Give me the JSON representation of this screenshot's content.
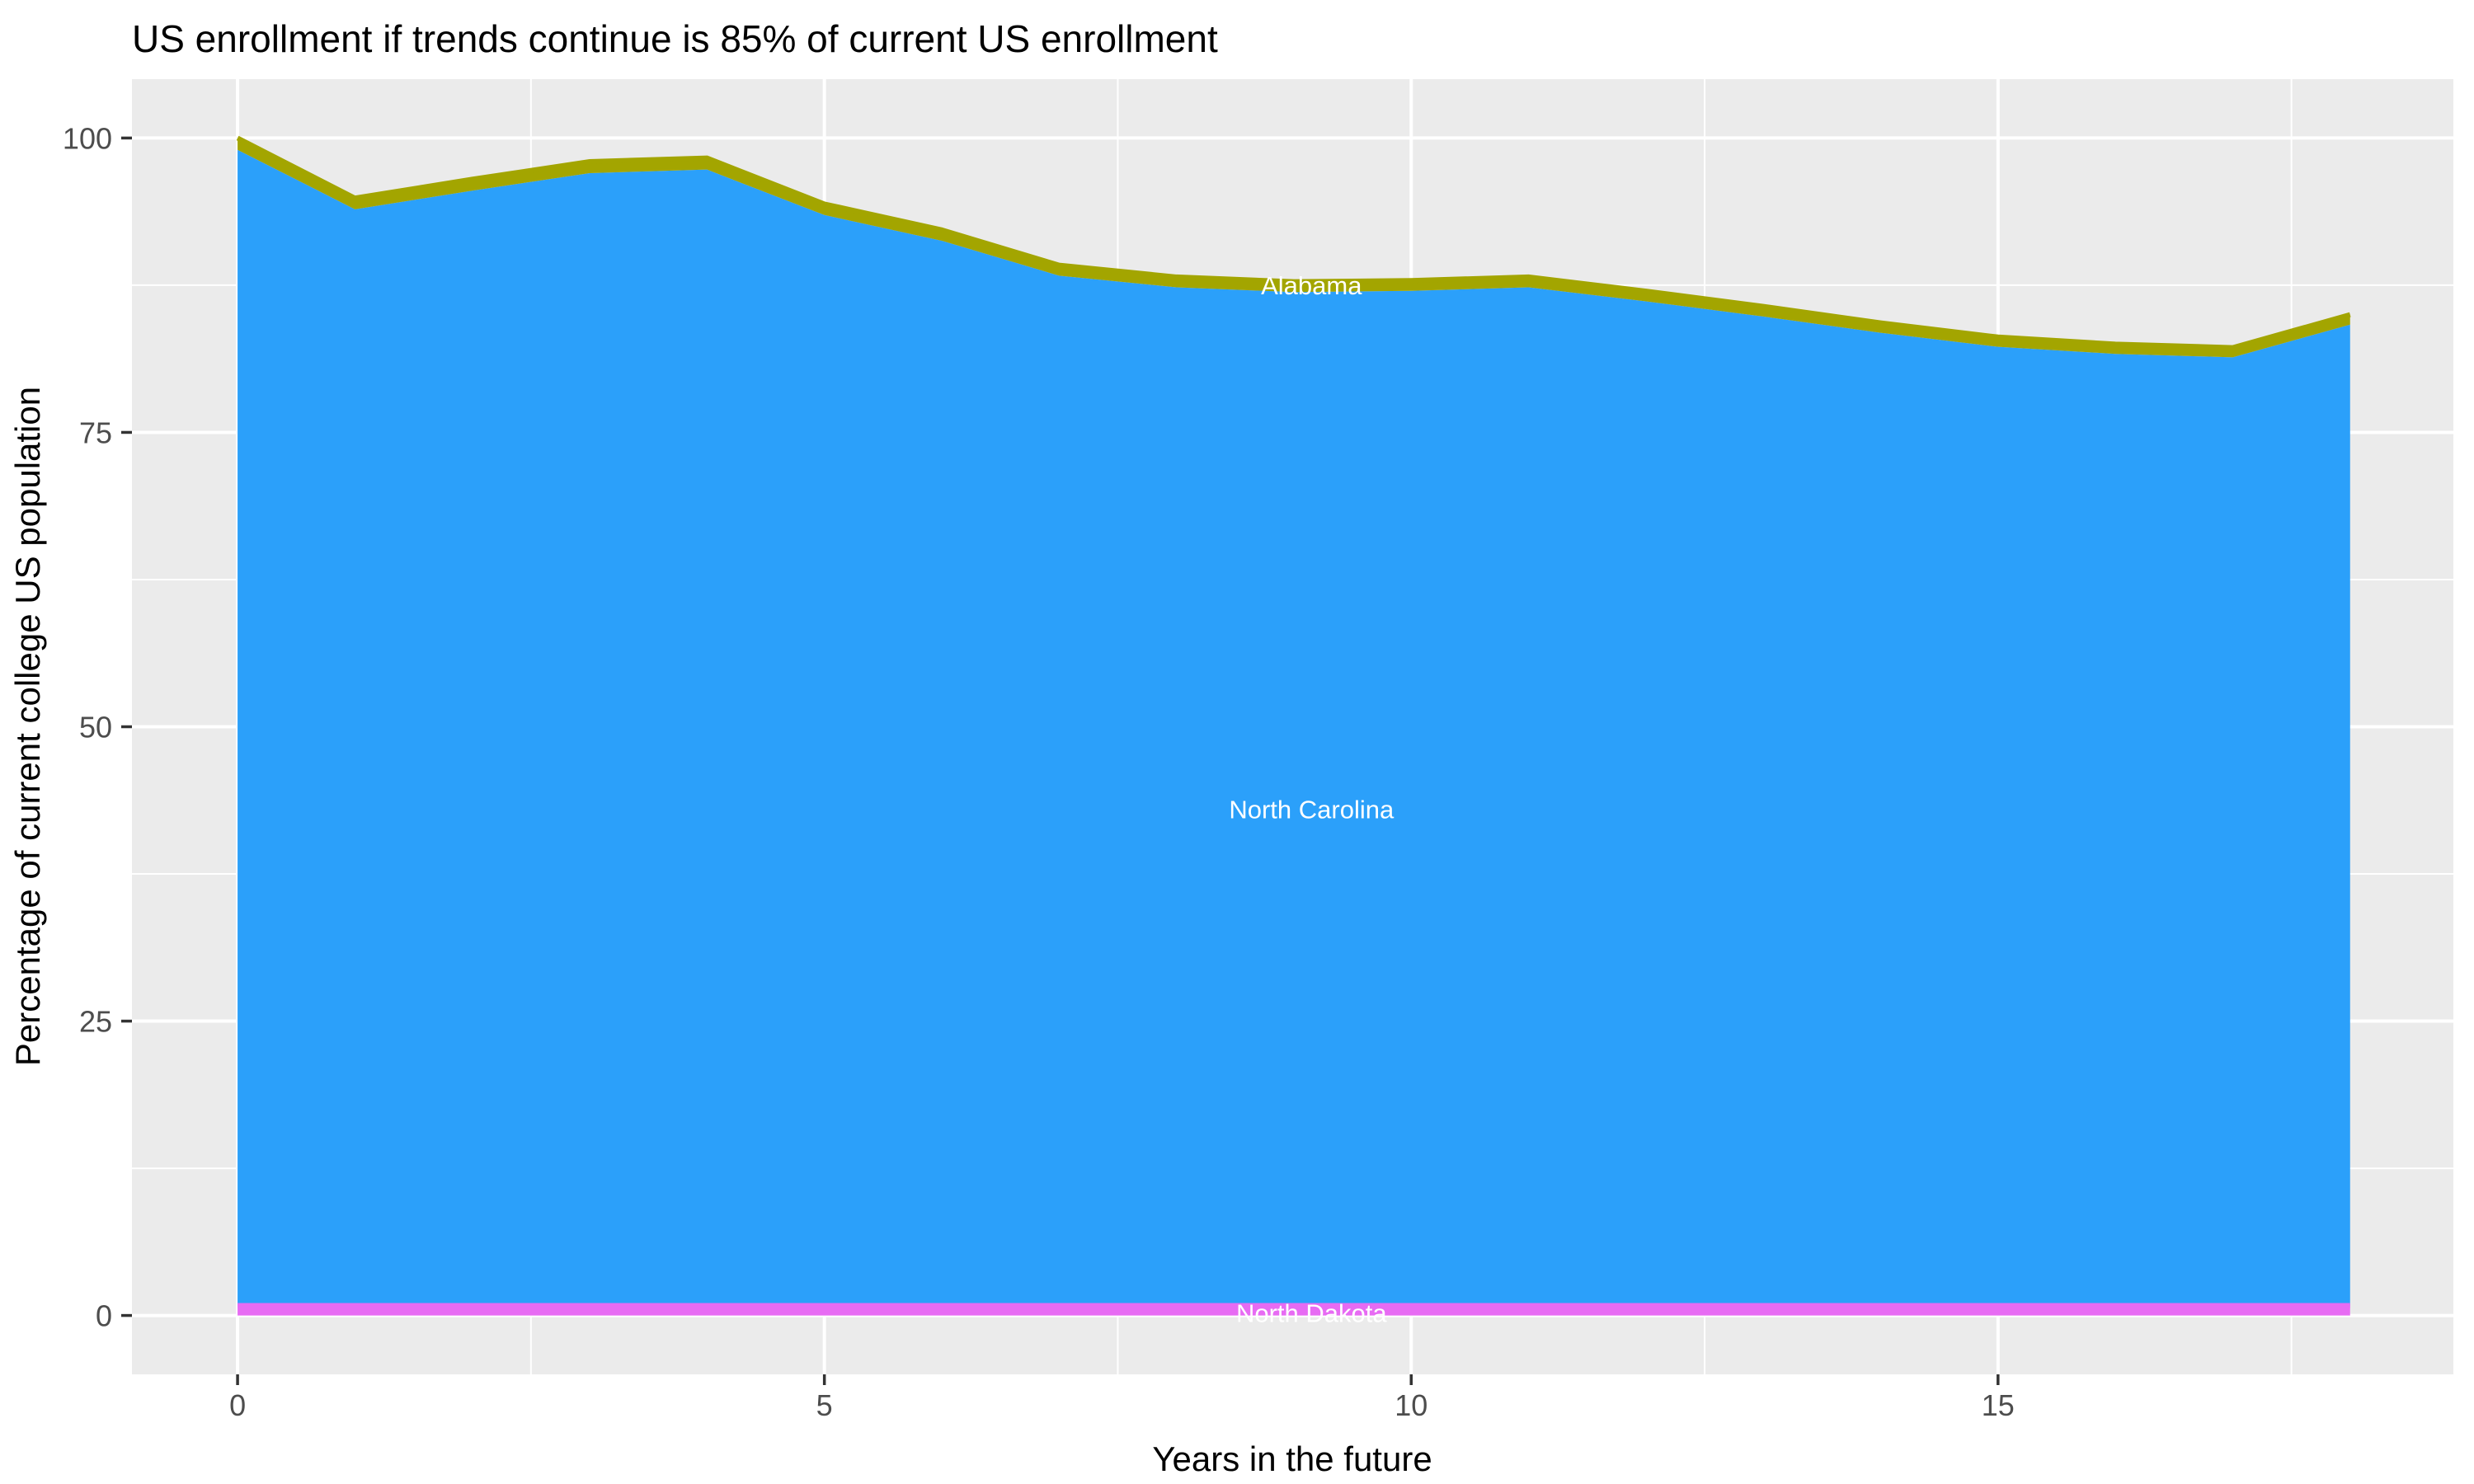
{
  "chart_data": {
    "type": "area",
    "variant": "stacked",
    "title": "US enrollment if trends continue is 85% of current US enrollment",
    "xlabel": "Years in the future",
    "ylabel": "Percentage of current college US population",
    "x": [
      0,
      1,
      2,
      3,
      4,
      5,
      6,
      7,
      8,
      9,
      10,
      11,
      12,
      13,
      14,
      15,
      16,
      17,
      18
    ],
    "series": [
      {
        "name": "North Dakota",
        "color": "#E76BF3",
        "stroke_top": true,
        "label": "North Dakota",
        "label_x": 9.15,
        "label_y": 0.2,
        "values": [
          0.85,
          0.85,
          0.85,
          0.85,
          0.85,
          0.85,
          0.85,
          0.85,
          0.85,
          0.85,
          0.85,
          0.85,
          0.85,
          0.85,
          0.85,
          0.85,
          0.85,
          0.85,
          0.85
        ]
      },
      {
        "name": "North Carolina",
        "color": "#2BA0FA",
        "stroke_top": false,
        "label": "North Carolina",
        "label_x": 9.15,
        "label_y": 43.0,
        "values": [
          98.15,
          93.1,
          94.68,
          96.17,
          96.47,
          92.61,
          90.43,
          87.46,
          86.47,
          86.07,
          86.17,
          86.47,
          85.28,
          83.99,
          82.61,
          81.42,
          80.82,
          80.53,
          83.3
        ]
      },
      {
        "name": "Alabama",
        "color": "#A3A500",
        "stroke_top": true,
        "label": "Alabama",
        "label_x": 9.15,
        "label_y": 87.5,
        "values": [
          1.0,
          0.95,
          0.97,
          0.98,
          0.98,
          0.94,
          0.92,
          0.89,
          0.88,
          0.88,
          0.88,
          0.88,
          0.87,
          0.86,
          0.84,
          0.83,
          0.83,
          0.82,
          0.85
        ]
      }
    ],
    "stacked_totals": [
      100.0,
      94.9,
      96.5,
      98.0,
      98.3,
      94.4,
      92.2,
      89.2,
      88.2,
      87.8,
      87.9,
      88.2,
      87.0,
      85.7,
      84.3,
      83.1,
      82.5,
      82.2,
      85.0
    ],
    "x_ticks": [
      0,
      5,
      10,
      15
    ],
    "x_tick_labels": [
      "0",
      "5",
      "10",
      "15"
    ],
    "y_ticks": [
      0,
      25,
      50,
      75,
      100
    ],
    "y_tick_labels": [
      "0",
      "25",
      "50",
      "75",
      "100"
    ],
    "x_minor": [
      2.5,
      7.5,
      12.5,
      17.5
    ],
    "y_minor": [
      12.5,
      37.5,
      62.5,
      87.5
    ],
    "xlim": [
      -0.9,
      18.88
    ],
    "ylim": [
      -5,
      105
    ],
    "grid": true,
    "legend": "none",
    "colors": {
      "panel_background": "#EBEBEB",
      "grid": "#FFFFFF",
      "tick_mark": "#333333",
      "tick_label": "#4D4D4D",
      "title": "#000000",
      "band_label_text": "#FFFFFF"
    }
  }
}
